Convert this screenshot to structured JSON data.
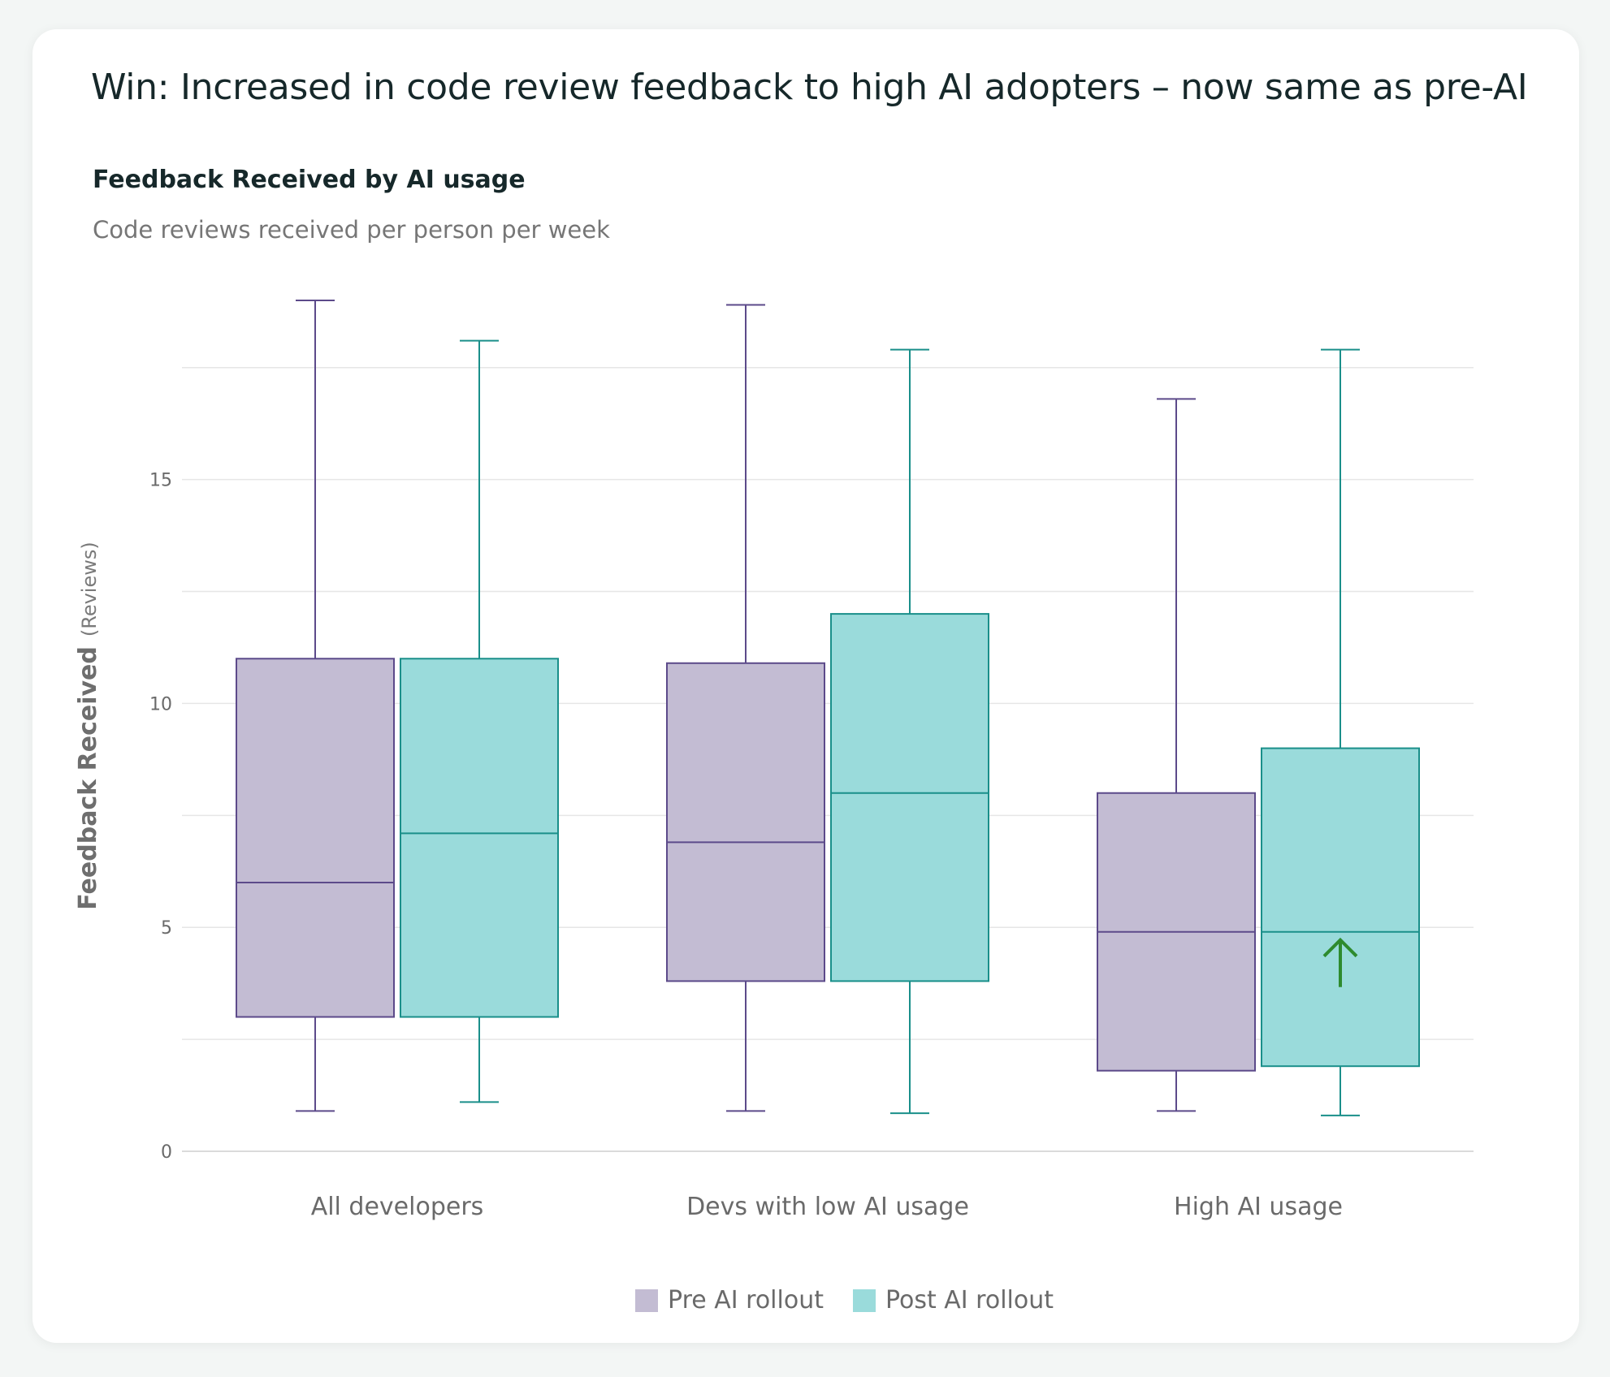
{
  "page": {
    "title": "Win: Increased in code review feedback to high AI adopters – now same as pre-AI"
  },
  "chart_data": {
    "type": "box",
    "title": "Feedback Received by AI usage",
    "subtitle": "Code reviews received per person per week",
    "ylabel": "Feedback Received",
    "ylabel_unit": "(Reviews)",
    "xlabel": "",
    "ylim": [
      0,
      19
    ],
    "yticks": [
      0,
      5,
      10,
      15
    ],
    "grid": true,
    "legend_position": "bottom-center",
    "categories": [
      "All developers",
      "Devs with low AI usage",
      "High AI usage"
    ],
    "series": [
      {
        "name": "Pre AI rollout",
        "fill": "#c3bcd3",
        "stroke": "#5c4a8a",
        "boxes": [
          {
            "min": 0.9,
            "q1": 3.0,
            "median": 6.0,
            "q3": 11.0,
            "max": 19.0
          },
          {
            "min": 0.9,
            "q1": 3.8,
            "median": 6.9,
            "q3": 10.9,
            "max": 18.9
          },
          {
            "min": 0.9,
            "q1": 1.8,
            "median": 4.9,
            "q3": 8.0,
            "max": 16.8
          }
        ]
      },
      {
        "name": "Post AI rollout",
        "fill": "#9adbdb",
        "stroke": "#1a8f8a",
        "boxes": [
          {
            "min": 1.1,
            "q1": 3.0,
            "median": 7.1,
            "q3": 11.0,
            "max": 18.1
          },
          {
            "min": 0.85,
            "q1": 3.8,
            "median": 8.0,
            "q3": 12.0,
            "max": 17.9
          },
          {
            "min": 0.8,
            "q1": 1.9,
            "median": 4.9,
            "q3": 9.0,
            "max": 17.9
          }
        ]
      }
    ],
    "annotation": {
      "type": "up-arrow",
      "category": "High AI usage",
      "series": "Post AI rollout",
      "color": "#2e8b2e"
    }
  }
}
